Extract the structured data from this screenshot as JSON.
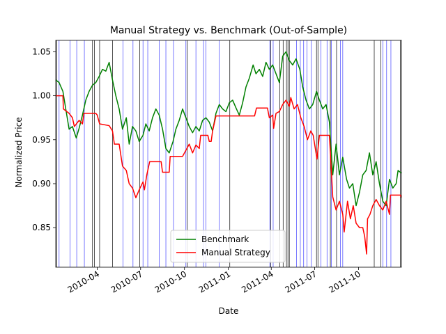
{
  "chart_data": {
    "type": "line",
    "title": "Manual Strategy vs. Benchmark (Out-of-Sample)",
    "xlabel": "Date",
    "ylabel": "Normalized Price",
    "xlim": [
      "2010-01-04",
      "2011-12-30"
    ],
    "ylim": [
      0.805,
      1.063
    ],
    "x_ticks": [
      {
        "date": "2010-04-01",
        "label": "2010-04"
      },
      {
        "date": "2010-07-01",
        "label": "2010-07"
      },
      {
        "date": "2010-10-01",
        "label": "2010-10"
      },
      {
        "date": "2011-01-01",
        "label": "2011-01"
      },
      {
        "date": "2011-04-01",
        "label": "2011-04"
      },
      {
        "date": "2011-07-01",
        "label": "2011-07"
      },
      {
        "date": "2011-10-01",
        "label": "2011-10"
      }
    ],
    "y_ticks": [
      0.85,
      0.9,
      0.95,
      1.0,
      1.05
    ],
    "y_tick_labels": [
      "0.85",
      "0.90",
      "0.95",
      "1.00",
      "1.05"
    ],
    "grid": false,
    "legend_position": "bottom-center",
    "series": [
      {
        "name": "Benchmark",
        "color": "#008000",
        "points": [
          [
            "2010-01-04",
            1.018
          ],
          [
            "2010-01-11",
            1.015
          ],
          [
            "2010-01-19",
            1.005
          ],
          [
            "2010-01-25",
            0.985
          ],
          [
            "2010-02-01",
            0.962
          ],
          [
            "2010-02-08",
            0.965
          ],
          [
            "2010-02-16",
            0.952
          ],
          [
            "2010-02-22",
            0.963
          ],
          [
            "2010-03-01",
            0.978
          ],
          [
            "2010-03-08",
            0.995
          ],
          [
            "2010-03-15",
            1.005
          ],
          [
            "2010-03-22",
            1.012
          ],
          [
            "2010-03-29",
            1.015
          ],
          [
            "2010-04-05",
            1.022
          ],
          [
            "2010-04-12",
            1.03
          ],
          [
            "2010-04-19",
            1.028
          ],
          [
            "2010-04-26",
            1.038
          ],
          [
            "2010-05-03",
            1.018
          ],
          [
            "2010-05-10",
            1.0
          ],
          [
            "2010-05-17",
            0.985
          ],
          [
            "2010-05-24",
            0.962
          ],
          [
            "2010-06-01",
            0.975
          ],
          [
            "2010-06-07",
            0.945
          ],
          [
            "2010-06-14",
            0.965
          ],
          [
            "2010-06-21",
            0.96
          ],
          [
            "2010-06-28",
            0.948
          ],
          [
            "2010-07-06",
            0.955
          ],
          [
            "2010-07-12",
            0.968
          ],
          [
            "2010-07-19",
            0.96
          ],
          [
            "2010-07-26",
            0.975
          ],
          [
            "2010-08-02",
            0.985
          ],
          [
            "2010-08-09",
            0.978
          ],
          [
            "2010-08-16",
            0.962
          ],
          [
            "2010-08-23",
            0.94
          ],
          [
            "2010-08-30",
            0.935
          ],
          [
            "2010-09-07",
            0.948
          ],
          [
            "2010-09-13",
            0.962
          ],
          [
            "2010-09-20",
            0.972
          ],
          [
            "2010-09-27",
            0.985
          ],
          [
            "2010-10-04",
            0.975
          ],
          [
            "2010-10-11",
            0.965
          ],
          [
            "2010-10-18",
            0.958
          ],
          [
            "2010-10-25",
            0.965
          ],
          [
            "2010-11-01",
            0.96
          ],
          [
            "2010-11-08",
            0.972
          ],
          [
            "2010-11-15",
            0.975
          ],
          [
            "2010-11-22",
            0.97
          ],
          [
            "2010-11-29",
            0.96
          ],
          [
            "2010-12-06",
            0.98
          ],
          [
            "2010-12-13",
            0.99
          ],
          [
            "2010-12-20",
            0.985
          ],
          [
            "2010-12-27",
            0.982
          ],
          [
            "2011-01-03",
            0.992
          ],
          [
            "2011-01-10",
            0.995
          ],
          [
            "2011-01-18",
            0.985
          ],
          [
            "2011-01-24",
            0.978
          ],
          [
            "2011-01-31",
            0.992
          ],
          [
            "2011-02-07",
            1.01
          ],
          [
            "2011-02-14",
            1.02
          ],
          [
            "2011-02-22",
            1.035
          ],
          [
            "2011-02-28",
            1.025
          ],
          [
            "2011-03-07",
            1.03
          ],
          [
            "2011-03-14",
            1.022
          ],
          [
            "2011-03-21",
            1.038
          ],
          [
            "2011-03-28",
            1.03
          ],
          [
            "2011-04-04",
            1.035
          ],
          [
            "2011-04-11",
            1.025
          ],
          [
            "2011-04-18",
            1.015
          ],
          [
            "2011-04-25",
            1.045
          ],
          [
            "2011-05-02",
            1.05
          ],
          [
            "2011-05-09",
            1.04
          ],
          [
            "2011-05-16",
            1.035
          ],
          [
            "2011-05-23",
            1.042
          ],
          [
            "2011-05-31",
            1.03
          ],
          [
            "2011-06-06",
            1.01
          ],
          [
            "2011-06-13",
            0.995
          ],
          [
            "2011-06-20",
            0.985
          ],
          [
            "2011-06-27",
            0.99
          ],
          [
            "2011-07-05",
            1.005
          ],
          [
            "2011-07-11",
            0.995
          ],
          [
            "2011-07-18",
            0.985
          ],
          [
            "2011-07-25",
            0.99
          ],
          [
            "2011-08-01",
            0.97
          ],
          [
            "2011-08-08",
            0.91
          ],
          [
            "2011-08-15",
            0.945
          ],
          [
            "2011-08-22",
            0.91
          ],
          [
            "2011-08-29",
            0.93
          ],
          [
            "2011-09-06",
            0.905
          ],
          [
            "2011-09-12",
            0.895
          ],
          [
            "2011-09-19",
            0.9
          ],
          [
            "2011-09-26",
            0.875
          ],
          [
            "2011-10-03",
            0.89
          ],
          [
            "2011-10-10",
            0.91
          ],
          [
            "2011-10-17",
            0.915
          ],
          [
            "2011-10-24",
            0.935
          ],
          [
            "2011-10-31",
            0.91
          ],
          [
            "2011-11-07",
            0.925
          ],
          [
            "2011-11-14",
            0.9
          ],
          [
            "2011-11-21",
            0.88
          ],
          [
            "2011-11-28",
            0.875
          ],
          [
            "2011-12-05",
            0.905
          ],
          [
            "2011-12-12",
            0.895
          ],
          [
            "2011-12-19",
            0.9
          ],
          [
            "2011-12-23",
            0.915
          ],
          [
            "2011-12-30",
            0.912
          ]
        ]
      },
      {
        "name": "Manual Strategy",
        "color": "#ff0000",
        "points": [
          [
            "2010-01-04",
            1.0
          ],
          [
            "2010-01-19",
            1.0
          ],
          [
            "2010-01-20",
            0.985
          ],
          [
            "2010-02-01",
            0.98
          ],
          [
            "2010-02-08",
            0.975
          ],
          [
            "2010-02-12",
            0.965
          ],
          [
            "2010-02-22",
            0.972
          ],
          [
            "2010-03-01",
            0.968
          ],
          [
            "2010-03-04",
            0.98
          ],
          [
            "2010-03-29",
            0.98
          ],
          [
            "2010-04-01",
            0.978
          ],
          [
            "2010-04-06",
            0.968
          ],
          [
            "2010-04-26",
            0.966
          ],
          [
            "2010-05-03",
            0.96
          ],
          [
            "2010-05-07",
            0.945
          ],
          [
            "2010-05-17",
            0.945
          ],
          [
            "2010-05-24",
            0.92
          ],
          [
            "2010-06-01",
            0.915
          ],
          [
            "2010-06-07",
            0.9
          ],
          [
            "2010-06-14",
            0.895
          ],
          [
            "2010-06-21",
            0.884
          ],
          [
            "2010-06-28",
            0.893
          ],
          [
            "2010-07-06",
            0.902
          ],
          [
            "2010-07-09",
            0.893
          ],
          [
            "2010-07-14",
            0.91
          ],
          [
            "2010-07-20",
            0.925
          ],
          [
            "2010-08-13",
            0.925
          ],
          [
            "2010-08-16",
            0.913
          ],
          [
            "2010-08-30",
            0.913
          ],
          [
            "2010-09-01",
            0.931
          ],
          [
            "2010-09-27",
            0.931
          ],
          [
            "2010-10-04",
            0.938
          ],
          [
            "2010-10-11",
            0.945
          ],
          [
            "2010-10-18",
            0.935
          ],
          [
            "2010-10-25",
            0.944
          ],
          [
            "2010-11-01",
            0.94
          ],
          [
            "2010-11-04",
            0.955
          ],
          [
            "2010-11-19",
            0.955
          ],
          [
            "2010-11-22",
            0.948
          ],
          [
            "2010-11-26",
            0.948
          ],
          [
            "2010-11-29",
            0.96
          ],
          [
            "2010-12-06",
            0.977
          ],
          [
            "2011-02-25",
            0.977
          ],
          [
            "2011-03-01",
            0.986
          ],
          [
            "2011-03-24",
            0.986
          ],
          [
            "2011-03-28",
            0.975
          ],
          [
            "2011-04-04",
            0.978
          ],
          [
            "2011-04-06",
            0.963
          ],
          [
            "2011-04-11",
            0.98
          ],
          [
            "2011-04-18",
            0.982
          ],
          [
            "2011-04-25",
            0.99
          ],
          [
            "2011-05-02",
            0.995
          ],
          [
            "2011-05-09",
            0.988
          ],
          [
            "2011-05-12",
            0.998
          ],
          [
            "2011-05-19",
            0.985
          ],
          [
            "2011-05-26",
            0.99
          ],
          [
            "2011-06-02",
            0.975
          ],
          [
            "2011-06-09",
            0.965
          ],
          [
            "2011-06-16",
            0.95
          ],
          [
            "2011-06-23",
            0.96
          ],
          [
            "2011-06-28",
            0.955
          ],
          [
            "2011-07-06",
            0.928
          ],
          [
            "2011-07-11",
            0.955
          ],
          [
            "2011-08-01",
            0.955
          ],
          [
            "2011-08-08",
            0.885
          ],
          [
            "2011-08-15",
            0.87
          ],
          [
            "2011-08-22",
            0.88
          ],
          [
            "2011-08-29",
            0.865
          ],
          [
            "2011-09-01",
            0.845
          ],
          [
            "2011-09-08",
            0.88
          ],
          [
            "2011-09-14",
            0.86
          ],
          [
            "2011-09-20",
            0.875
          ],
          [
            "2011-09-26",
            0.855
          ],
          [
            "2011-10-03",
            0.85
          ],
          [
            "2011-10-10",
            0.85
          ],
          [
            "2011-10-14",
            0.84
          ],
          [
            "2011-10-18",
            0.82
          ],
          [
            "2011-10-20",
            0.86
          ],
          [
            "2011-10-25",
            0.865
          ],
          [
            "2011-10-31",
            0.875
          ],
          [
            "2011-11-07",
            0.882
          ],
          [
            "2011-11-14",
            0.875
          ],
          [
            "2011-11-21",
            0.87
          ],
          [
            "2011-11-28",
            0.88
          ],
          [
            "2011-12-05",
            0.865
          ],
          [
            "2011-12-07",
            0.887
          ],
          [
            "2011-12-28",
            0.887
          ],
          [
            "2011-12-30",
            0.884
          ]
        ]
      }
    ],
    "signal_lines": [
      {
        "color": "#0000ff",
        "dates": [
          "2010-01-11",
          "2010-02-03",
          "2010-02-17",
          "2010-03-05",
          "2010-05-25",
          "2010-06-15",
          "2010-07-06",
          "2010-07-16",
          "2010-08-09",
          "2010-08-23",
          "2010-09-08",
          "2010-10-04",
          "2010-10-25",
          "2010-11-10",
          "2010-11-15",
          "2010-12-13",
          "2011-03-29",
          "2011-04-05",
          "2011-05-24",
          "2011-06-01",
          "2011-06-08",
          "2011-06-15",
          "2011-06-24",
          "2011-07-14",
          "2011-07-27",
          "2011-08-05",
          "2011-08-24",
          "2011-08-29",
          "2011-11-21",
          "2011-11-29",
          "2011-12-08"
        ]
      },
      {
        "color": "#000000",
        "dates": [
          "2010-01-06",
          "2010-03-22",
          "2010-03-26",
          "2010-04-06",
          "2010-05-03",
          "2010-06-29",
          "2010-10-07",
          "2011-01-04",
          "2011-03-31",
          "2011-04-19",
          "2011-04-26",
          "2011-05-03",
          "2011-05-06",
          "2011-05-09",
          "2011-07-05",
          "2011-07-08",
          "2011-08-03",
          "2011-08-16",
          "2011-11-03",
          "2011-11-17",
          "2011-12-28"
        ]
      }
    ],
    "legend": [
      {
        "label": "Benchmark",
        "color": "#008000"
      },
      {
        "label": "Manual Strategy",
        "color": "#ff0000"
      }
    ]
  }
}
